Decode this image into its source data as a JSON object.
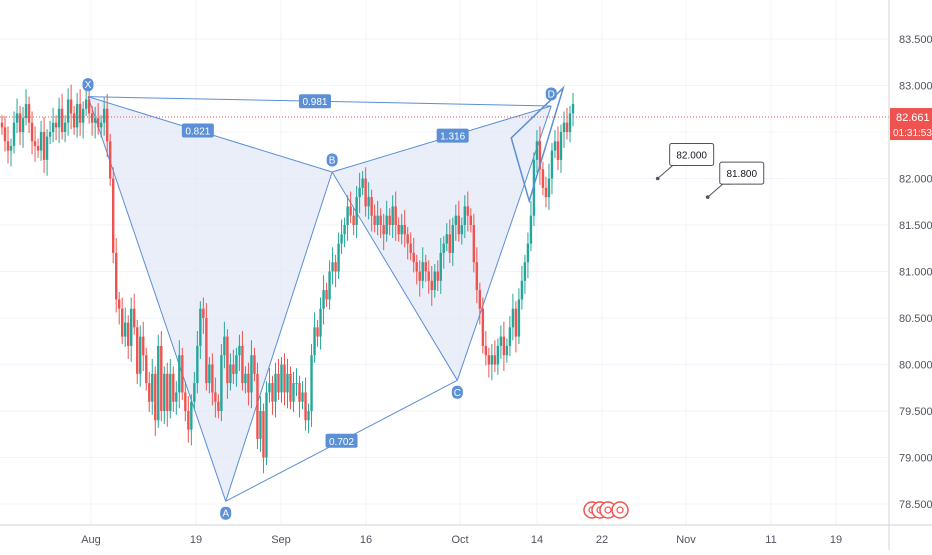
{
  "colors": {
    "up": "#26a69a",
    "down": "#ef5350",
    "pattern": "#5b8fd6",
    "pattern_fill": "#dfe7f7",
    "grid": "#f0f3fa",
    "axis_text": "#50535e",
    "price_tag": "#ef5350",
    "callout_border": "#50535e"
  },
  "chart_data": {
    "type": "candlestick",
    "x_dates": [
      "Aug",
      "19",
      "Sep",
      "16",
      "Oct",
      "14",
      "22",
      "Nov",
      "11",
      "19"
    ],
    "y_ticks": [
      "83.500",
      "83.000",
      "82.500",
      "82.000",
      "81.500",
      "81.000",
      "80.500",
      "80.000",
      "79.500",
      "79.000",
      "78.500"
    ],
    "y_range": [
      78.25,
      84.0
    ],
    "grid": true,
    "current_price": {
      "value": 82.661,
      "label": "82.661",
      "countdown": "01:31:53"
    },
    "pattern_points": [
      {
        "label": "X",
        "day": 0,
        "price": 82.88
      },
      {
        "label": "A",
        "day": 22,
        "price": 78.53
      },
      {
        "label": "B",
        "day": 39,
        "price": 82.07
      },
      {
        "label": "C",
        "day": 59,
        "price": 79.83
      },
      {
        "label": "D",
        "day": 74,
        "price": 82.78
      }
    ],
    "ratios": [
      {
        "label": "0.821",
        "from": "X",
        "to": "B"
      },
      {
        "label": "0.981",
        "from": "X",
        "to": "D"
      },
      {
        "label": "1.316",
        "from": "B",
        "to": "D"
      },
      {
        "label": "0.702",
        "from": "A",
        "to": "C"
      }
    ],
    "callouts": [
      {
        "label": "82.000",
        "day": 91,
        "price": 82.0
      },
      {
        "label": "81.800",
        "day": 99,
        "price": 81.8
      }
    ],
    "closes": [
      82.55,
      82.4,
      82.3,
      82.35,
      82.6,
      82.7,
      82.5,
      82.65,
      82.8,
      82.6,
      82.4,
      82.35,
      82.3,
      82.5,
      82.2,
      82.45,
      82.5,
      82.6,
      82.55,
      82.75,
      82.5,
      82.6,
      82.85,
      82.7,
      82.55,
      82.8,
      82.6,
      82.75,
      82.85,
      82.7,
      82.6,
      82.65,
      82.55,
      82.6,
      82.75,
      82.4,
      82.0,
      81.2,
      80.7,
      80.6,
      80.3,
      80.45,
      80.2,
      80.6,
      80.4,
      79.9,
      80.3,
      80.1,
      79.8,
      79.6,
      79.9,
      79.4,
      80.2,
      79.5,
      79.9,
      79.5,
      79.9,
      79.6,
      79.7,
      80.1,
      79.7,
      79.5,
      79.3,
      79.6,
      79.8,
      80.2,
      80.6,
      80.5,
      79.8,
      80.0,
      79.7,
      79.6,
      79.5,
      80.1,
      80.3,
      79.8,
      80.0,
      79.9,
      80.1,
      80.2,
      79.8,
      79.9,
      79.7,
      80.1,
      79.9,
      79.2,
      79.5,
      79.0,
      79.7,
      79.8,
      79.6,
      79.9,
      79.7,
      80.0,
      79.7,
      79.9,
      79.6,
      79.8,
      79.8,
      79.6,
      79.7,
      79.4,
      79.5,
      80.1,
      80.4,
      80.3,
      80.6,
      80.8,
      80.7,
      81.0,
      81.1,
      81.0,
      81.3,
      81.4,
      81.5,
      81.7,
      81.6,
      81.5,
      81.8,
      81.9,
      82.0,
      81.7,
      81.8,
      81.6,
      81.5,
      81.6,
      81.5,
      81.4,
      81.6,
      81.5,
      81.7,
      81.5,
      81.4,
      81.5,
      81.4,
      81.3,
      81.2,
      81.1,
      81.0,
      80.9,
      81.1,
      81.0,
      80.9,
      80.8,
      81.0,
      80.9,
      81.2,
      81.3,
      81.4,
      81.2,
      81.5,
      81.6,
      81.4,
      81.5,
      81.7,
      81.6,
      81.5,
      81.1,
      80.8,
      80.6,
      80.2,
      80.1,
      80.0,
      80.1,
      80.0,
      80.2,
      80.3,
      80.1,
      80.2,
      80.4,
      80.6,
      80.3,
      80.7,
      80.9,
      81.1,
      81.3,
      81.6,
      82.2,
      82.4,
      82.1,
      81.9,
      81.8,
      82.0,
      82.3,
      82.4,
      82.2,
      82.5,
      82.6,
      82.5,
      82.7,
      82.8
    ]
  }
}
